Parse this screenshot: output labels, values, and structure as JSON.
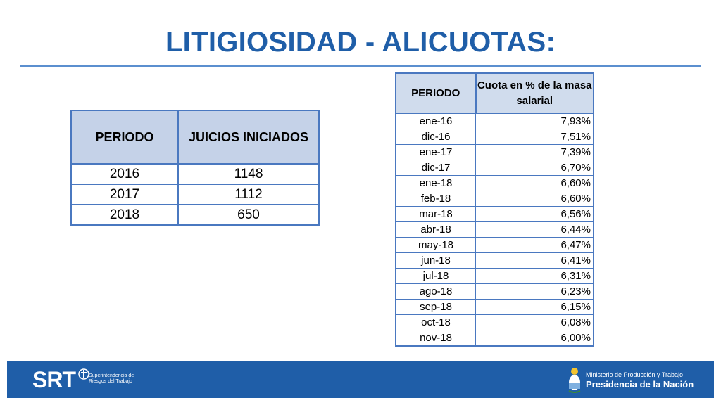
{
  "title": "LITIGIOSIDAD - ALICUOTAS:",
  "table_juicios": {
    "headers": [
      "PERIODO",
      "JUICIOS INICIADOS"
    ],
    "rows": [
      [
        "2016",
        "1148"
      ],
      [
        "2017",
        "1112"
      ],
      [
        "2018",
        "650"
      ]
    ]
  },
  "table_cuota": {
    "headers": [
      "PERIODO",
      "Cuota en % de la masa salarial"
    ],
    "rows": [
      [
        "ene-16",
        "7,93%"
      ],
      [
        "dic-16",
        "7,51%"
      ],
      [
        "ene-17",
        "7,39%"
      ],
      [
        "dic-17",
        "6,70%"
      ],
      [
        "ene-18",
        "6,60%"
      ],
      [
        "feb-18",
        "6,60%"
      ],
      [
        "mar-18",
        "6,56%"
      ],
      [
        "abr-18",
        "6,44%"
      ],
      [
        "may-18",
        "6,47%"
      ],
      [
        "jun-18",
        "6,41%"
      ],
      [
        "jul-18",
        "6,31%"
      ],
      [
        "ago-18",
        "6,23%"
      ],
      [
        "sep-18",
        "6,15%"
      ],
      [
        "oct-18",
        "6,08%"
      ],
      [
        "nov-18",
        "6,00%"
      ]
    ]
  },
  "footer": {
    "logo_text": "SRT",
    "logo_sub_1": "Superintendencia de",
    "logo_sub_2": "Riesgos del Trabajo",
    "ministry": "Ministerio de Producción y Trabajo",
    "presidency": "Presidencia de la Nación",
    "bg_color": "#1f5ea8"
  },
  "accent_color": "#1f5ea8"
}
